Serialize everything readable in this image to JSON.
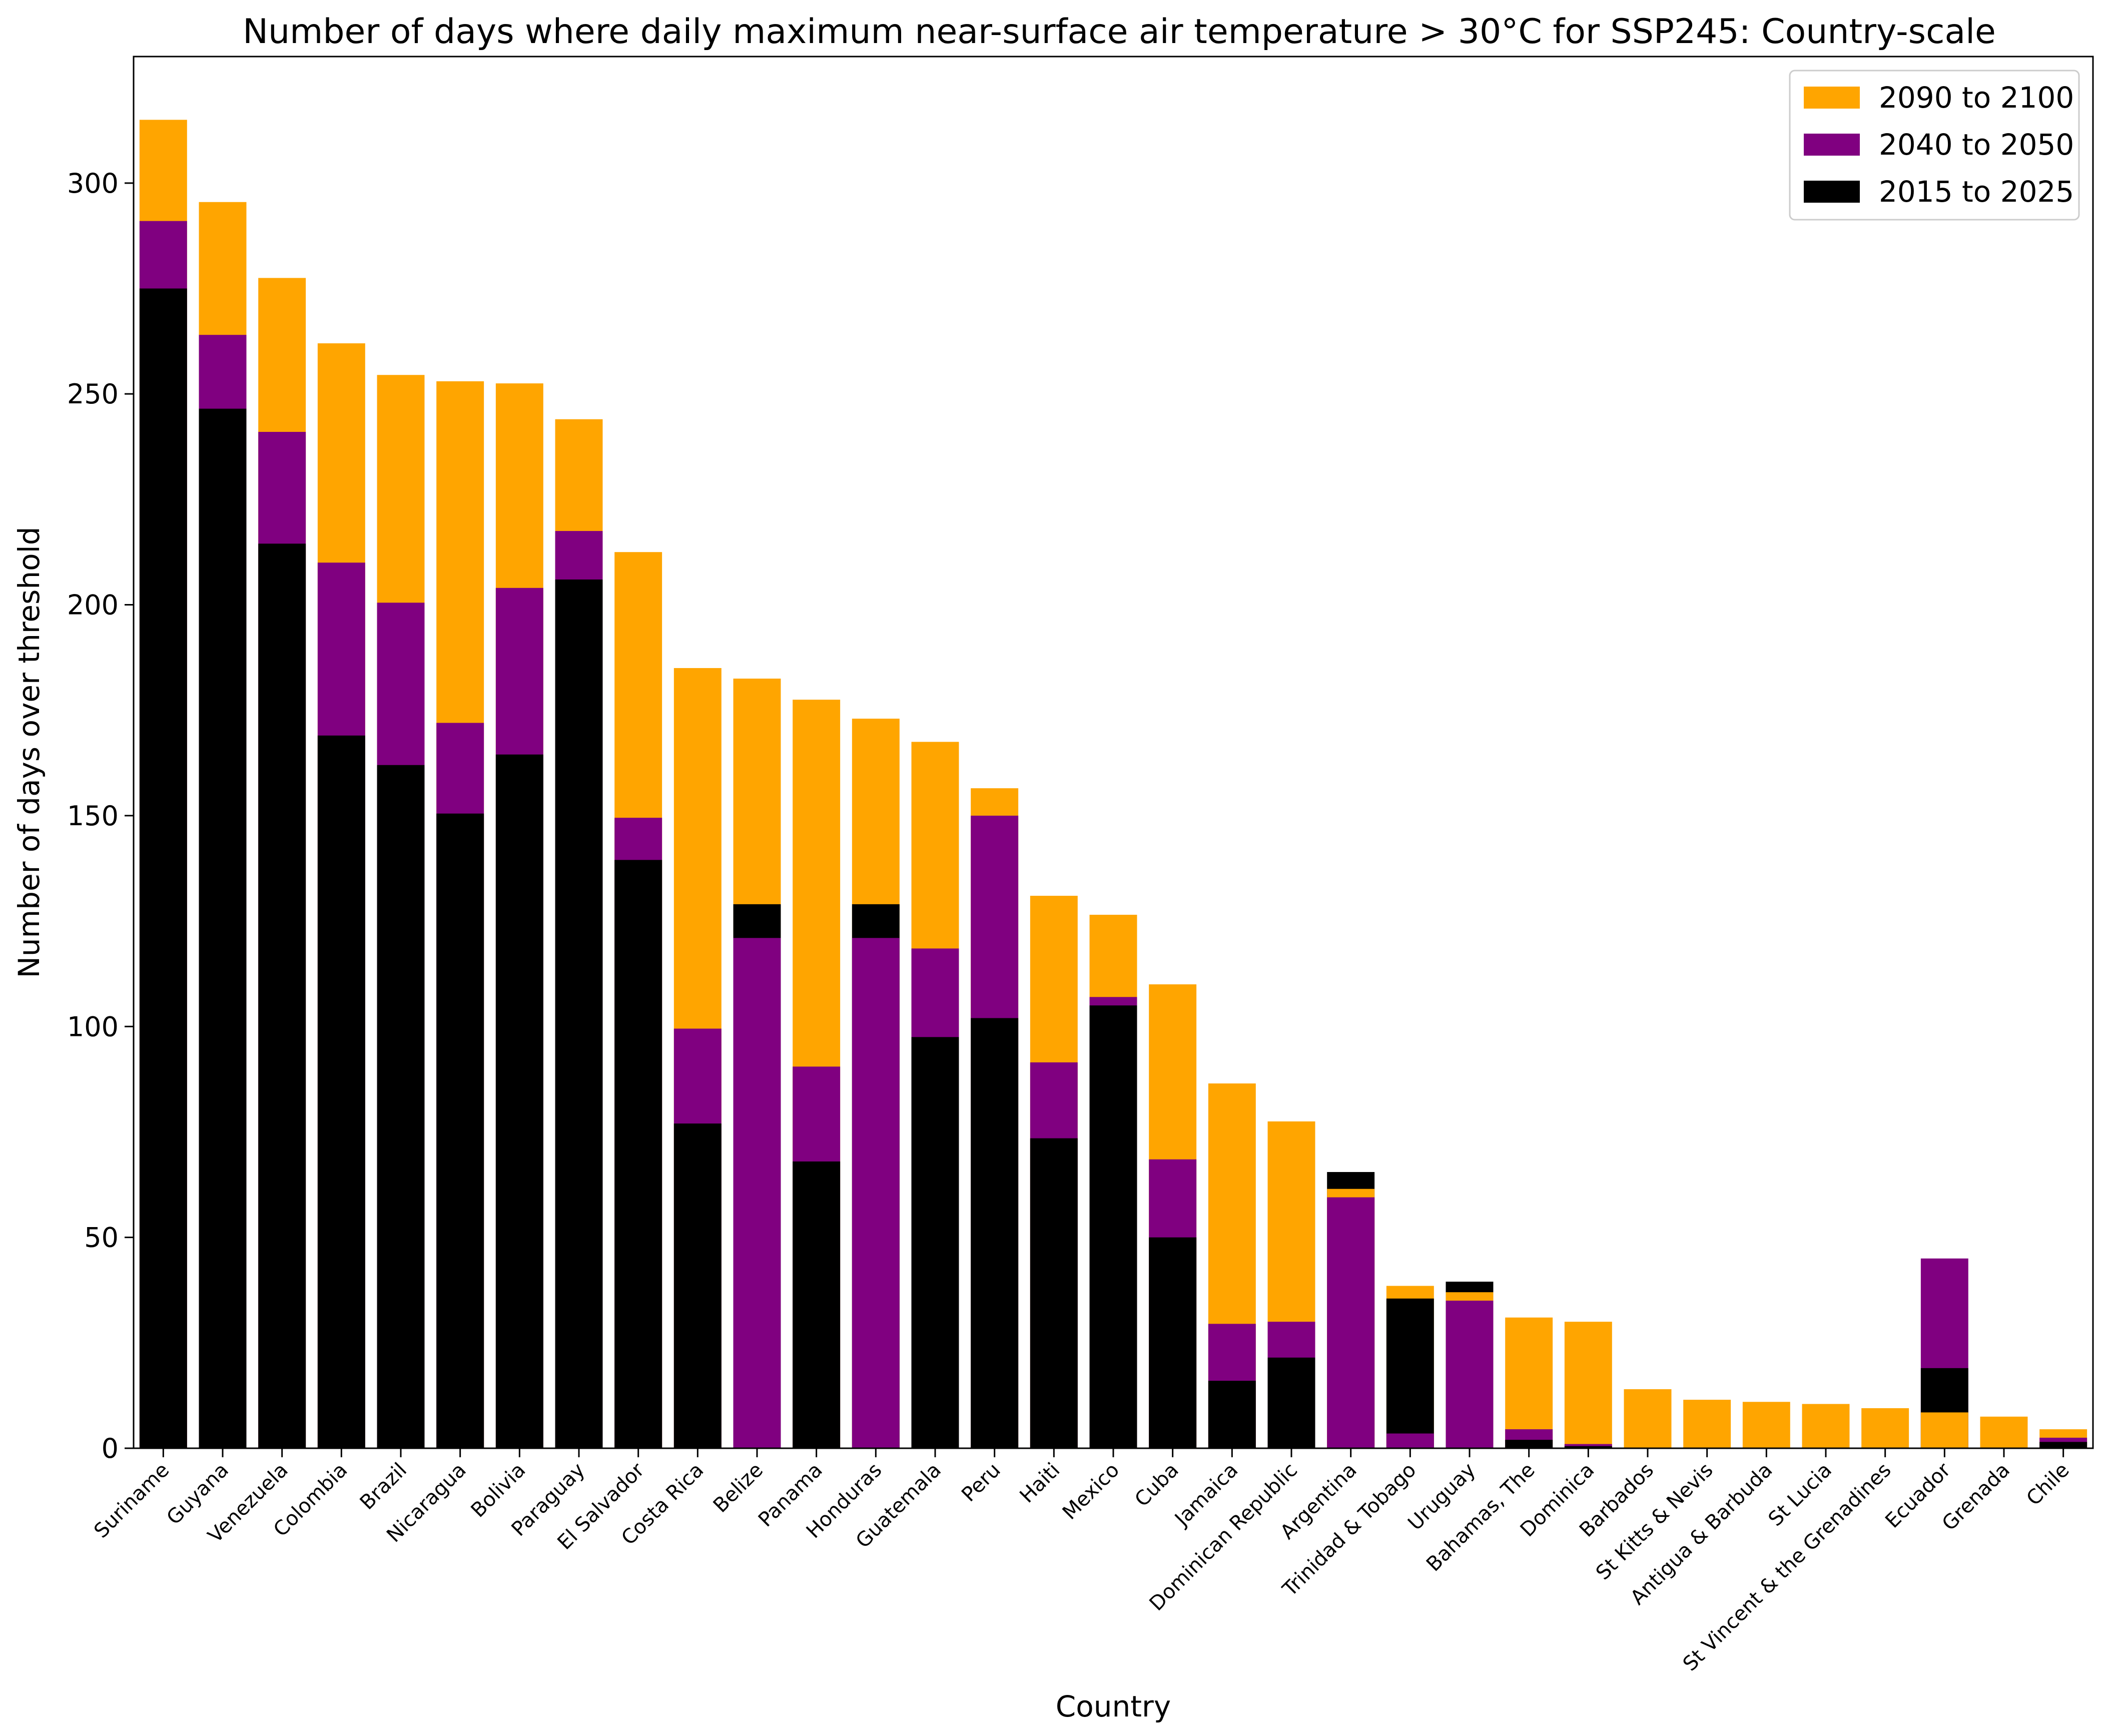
{
  "chart_data": {
    "type": "bar",
    "stacked": false,
    "draw_order": "each category's bars are overlaid (not summed); the taller value is drawn first so shorter values remain visible",
    "title": "Number of days where daily maximum near-surface air temperature > 30°C for SSP245: Country-scale",
    "xlabel": "Country",
    "ylabel": "Number of days over threshold",
    "ylim": [
      0,
      330
    ],
    "yticks": [
      0,
      50,
      100,
      150,
      200,
      250,
      300
    ],
    "grid": false,
    "legend_position": "top-right",
    "categories": [
      "Suriname",
      "Guyana",
      "Venezuela",
      "Colombia",
      "Brazil",
      "Nicaragua",
      "Bolivia",
      "Paraguay",
      "El Salvador",
      "Costa Rica",
      "Belize",
      "Panama",
      "Honduras",
      "Guatemala",
      "Peru",
      "Haiti",
      "Mexico",
      "Cuba",
      "Jamaica",
      "Dominican Republic",
      "Argentina",
      "Trinidad & Tobago",
      "Uruguay",
      "Bahamas, The",
      "Dominica",
      "Barbados",
      "St Kitts & Nevis",
      "Antigua & Barbuda",
      "St Lucia",
      "St Vincent & the Grenadines",
      "Ecuador",
      "Grenada",
      "Chile"
    ],
    "series": [
      {
        "name": "2090 to 2100",
        "color": "#FFA500",
        "values": [
          315,
          295.5,
          277.5,
          262,
          254.5,
          253,
          252.5,
          244,
          212.5,
          185,
          182.5,
          177.5,
          173,
          167.5,
          156.5,
          131,
          126.5,
          110,
          86.5,
          77.5,
          61.5,
          38.5,
          37,
          31,
          30,
          14,
          11.5,
          11,
          10.5,
          9.5,
          8.5,
          7.5,
          4.5
        ]
      },
      {
        "name": "2040 to 2050",
        "color": "#800080",
        "values": [
          291,
          264,
          241,
          210,
          200.5,
          172,
          204,
          217.5,
          149.5,
          99.5,
          121,
          90.5,
          121,
          118.5,
          150,
          91.5,
          107,
          68.5,
          29.5,
          30,
          59.5,
          3.5,
          35,
          4.5,
          1,
          0,
          0,
          0,
          0,
          0,
          45,
          0,
          2.5
        ]
      },
      {
        "name": "2015 to 2025",
        "color": "#000000",
        "values": [
          275,
          246.5,
          214.5,
          169,
          162,
          150.5,
          164.5,
          206,
          139.5,
          77,
          129,
          68,
          129,
          97.5,
          102,
          73.5,
          105,
          50,
          16,
          21.5,
          65.5,
          35.5,
          39.5,
          2,
          0.5,
          0,
          0,
          0,
          0,
          0,
          19,
          0,
          1.5
        ]
      }
    ]
  }
}
